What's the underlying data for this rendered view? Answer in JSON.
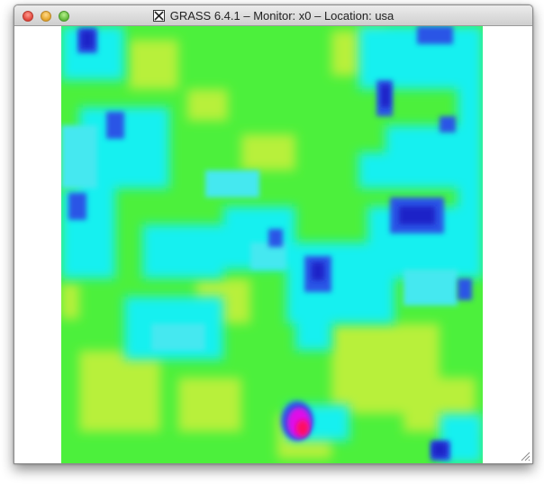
{
  "window": {
    "title": "GRASS 6.4.1 – Monitor: x0 – Location: usa",
    "title_icon": "x11-icon"
  },
  "controls": {
    "close_icon": "close-icon",
    "minimize_icon": "minimize-icon",
    "zoom_icon": "zoom-icon",
    "resize_icon": "resize-grip-icon"
  },
  "colors": {
    "green": "#4cf03c",
    "yellow_green": "#b8f03a",
    "cyan": "#18f0f0",
    "light_cyan": "#45e8f0",
    "blue": "#2a55e6",
    "dark_blue": "#1a20c8",
    "magenta": "#e010e8",
    "red": "#ff1060"
  }
}
